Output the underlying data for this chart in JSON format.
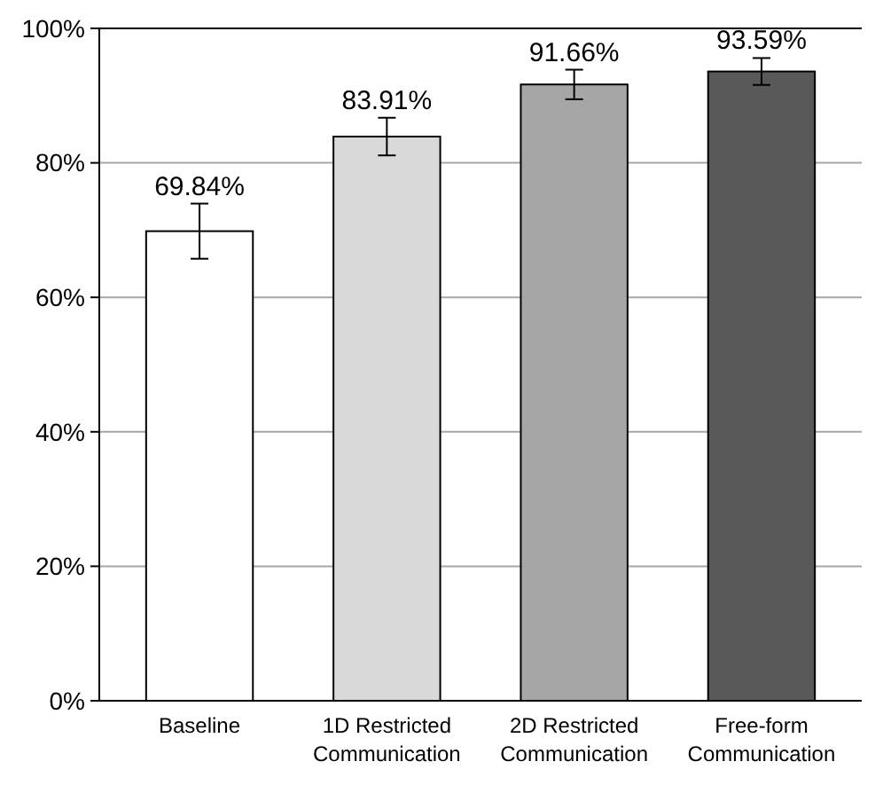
{
  "chart_data": {
    "type": "bar",
    "categories": [
      "Baseline",
      "1D Restricted Communication",
      "2D Restricted Communication",
      "Free-form Communication"
    ],
    "values": [
      69.84,
      83.91,
      91.66,
      93.59
    ],
    "colors": [
      "#ffffff",
      "#d9d9d9",
      "#a6a6a6",
      "#595959"
    ],
    "errors": [
      4.1,
      2.8,
      2.2,
      2
    ],
    "value_labels": [
      "69.84%",
      "83.91%",
      "91.66%",
      "93.59%"
    ],
    "ylim": [
      0,
      100
    ],
    "yticks": [
      {
        "value": 0,
        "label": "0%"
      },
      {
        "value": 20,
        "label": "20%"
      },
      {
        "value": 40,
        "label": "40%"
      },
      {
        "value": 60,
        "label": "60%"
      },
      {
        "value": 80,
        "label": "80%"
      },
      {
        "value": 100,
        "label": "100%"
      }
    ],
    "grid": "y"
  }
}
